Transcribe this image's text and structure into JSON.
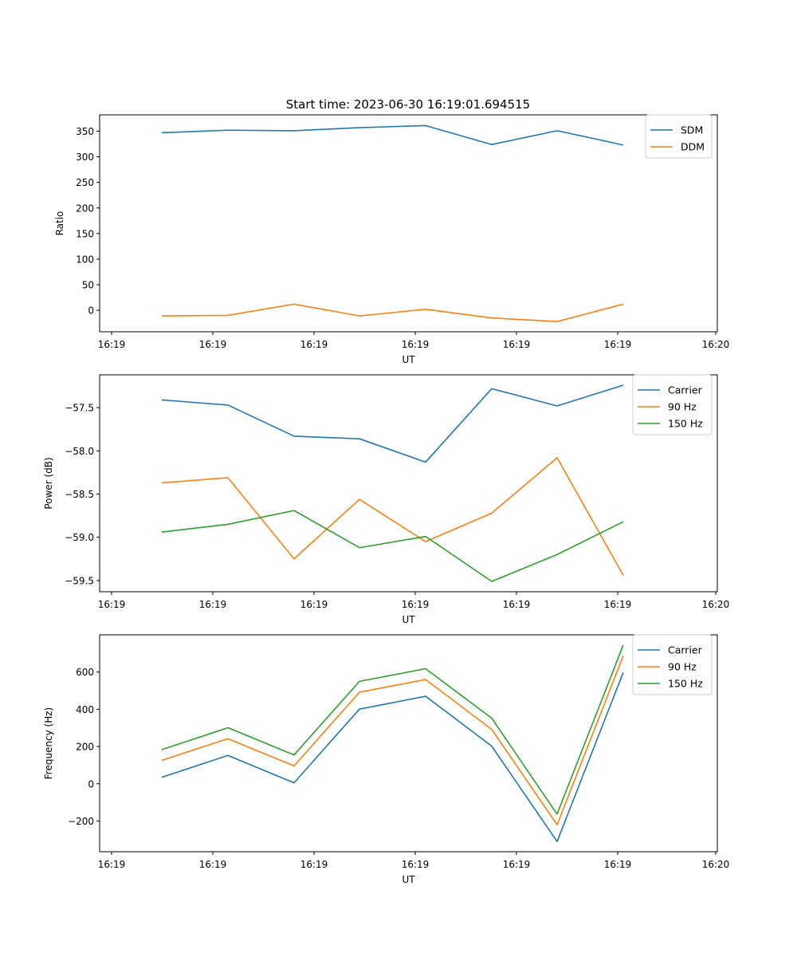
{
  "title": "Start time: 2023-06-30 16:19:01.694515",
  "colors": {
    "blue": "#1f77b4",
    "orange": "#ff7f0e",
    "green": "#2ca02c"
  },
  "chart_data": [
    {
      "type": "line",
      "xlabel": "UT",
      "ylabel": "Ratio",
      "x_tick_labels": [
        "16:19",
        "16:19",
        "16:19",
        "16:19",
        "16:19",
        "16:19",
        "16:20"
      ],
      "y_ticks": [
        0,
        50,
        100,
        150,
        200,
        250,
        300,
        350
      ],
      "ylim": [
        -42,
        382
      ],
      "legend_position": "upper right",
      "series": [
        {
          "name": "SDM",
          "color": "#1f77b4",
          "values": [
            347,
            352,
            351,
            357,
            361,
            324,
            351,
            323
          ]
        },
        {
          "name": "DDM",
          "color": "#ff7f0e",
          "values": [
            -11,
            -10,
            12,
            -11,
            2,
            -15,
            -22,
            12
          ]
        }
      ]
    },
    {
      "type": "line",
      "xlabel": "UT",
      "ylabel": "Power (dB)",
      "x_tick_labels": [
        "16:19",
        "16:19",
        "16:19",
        "16:19",
        "16:19",
        "16:19",
        "16:20"
      ],
      "y_ticks": [
        -57.5,
        -58.0,
        -58.5,
        -59.0,
        -59.5
      ],
      "y_tick_labels": [
        "−57.5",
        "−58.0",
        "−58.5",
        "−59.0",
        "−59.5"
      ],
      "ylim": [
        -59.63,
        -57.12
      ],
      "legend_position": "upper right",
      "series": [
        {
          "name": "Carrier",
          "color": "#1f77b4",
          "values": [
            -57.41,
            -57.47,
            -57.83,
            -57.86,
            -58.13,
            -57.28,
            -57.48,
            -57.24
          ]
        },
        {
          "name": "90 Hz",
          "color": "#ff7f0e",
          "values": [
            -58.37,
            -58.31,
            -59.25,
            -58.56,
            -59.05,
            -58.72,
            -58.08,
            -59.44
          ]
        },
        {
          "name": "150 Hz",
          "color": "#2ca02c",
          "values": [
            -58.94,
            -58.85,
            -58.69,
            -59.12,
            -58.99,
            -59.51,
            -59.2,
            -58.82
          ]
        }
      ]
    },
    {
      "type": "line",
      "xlabel": "UT",
      "ylabel": "Frequency (Hz)",
      "x_tick_labels": [
        "16:19",
        "16:19",
        "16:19",
        "16:19",
        "16:19",
        "16:19",
        "16:20"
      ],
      "y_ticks": [
        -200,
        0,
        200,
        400,
        600
      ],
      "y_tick_labels": [
        "−200",
        "0",
        "200",
        "400",
        "600"
      ],
      "ylim": [
        -365,
        800
      ],
      "legend_position": "upper right",
      "series": [
        {
          "name": "Carrier",
          "color": "#1f77b4",
          "values": [
            35,
            152,
            5,
            401,
            470,
            202,
            -310,
            598
          ]
        },
        {
          "name": "90 Hz",
          "color": "#ff7f0e",
          "values": [
            126,
            242,
            96,
            492,
            560,
            292,
            -220,
            688
          ]
        },
        {
          "name": "150 Hz",
          "color": "#2ca02c",
          "values": [
            183,
            301,
            155,
            550,
            618,
            352,
            -163,
            745
          ]
        }
      ]
    }
  ]
}
